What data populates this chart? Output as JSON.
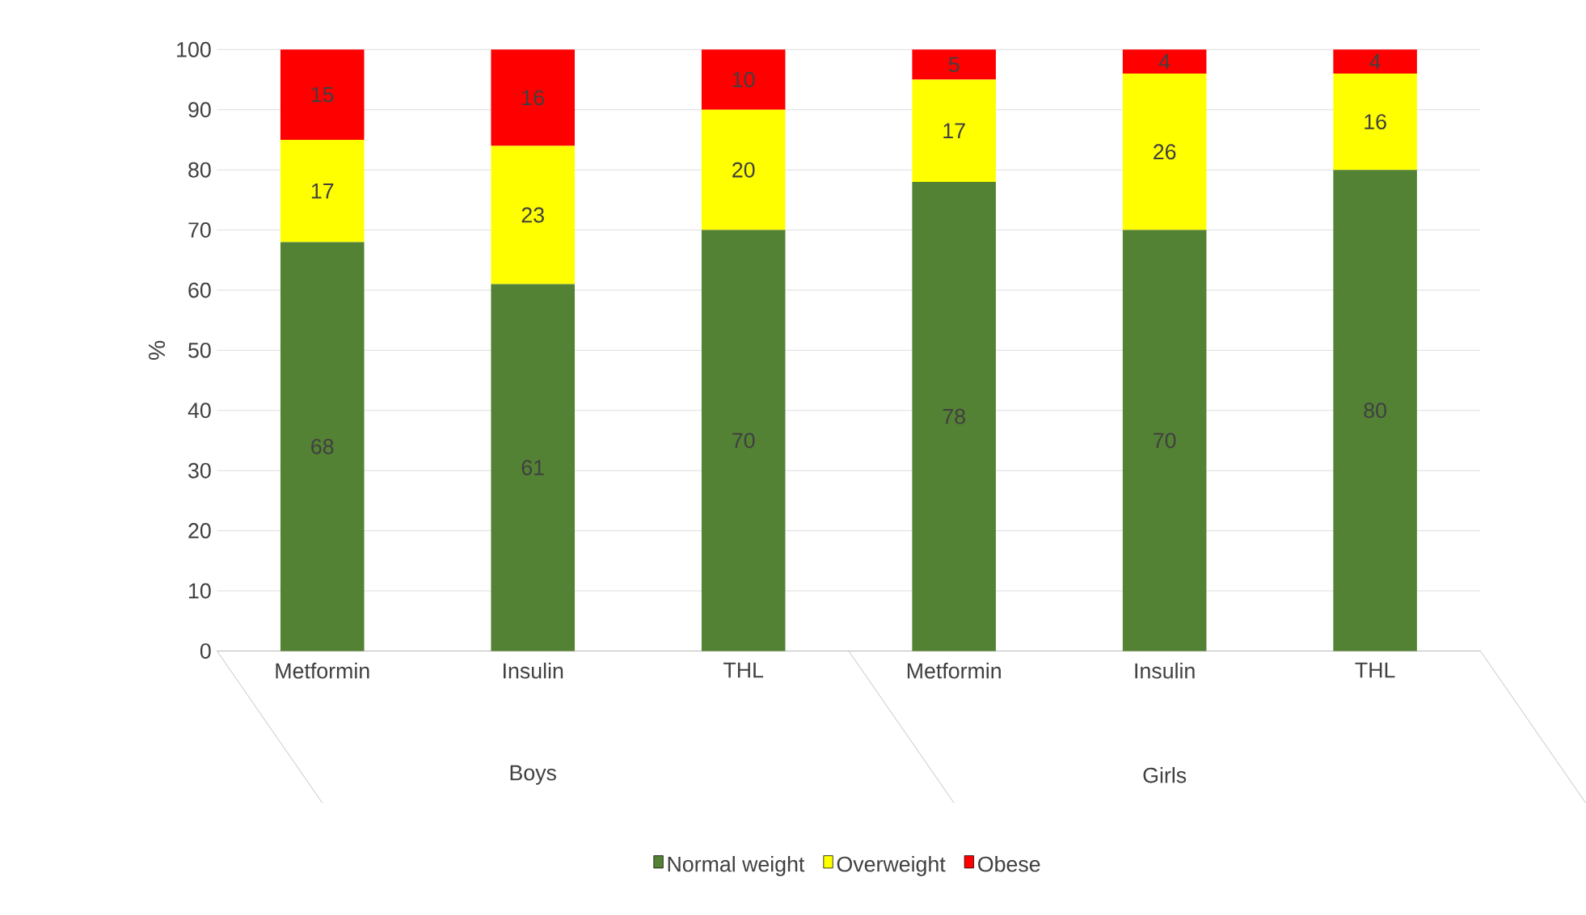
{
  "chart_data": {
    "type": "bar",
    "stacked": true,
    "ylabel": "%",
    "categories": [
      "Metformin",
      "Insulin",
      "THL",
      "Metformin",
      "Insulin",
      "THL"
    ],
    "annotations": [
      "Boys",
      "Girls"
    ],
    "series": [
      {
        "name": "Normal weight",
        "color": "#548235",
        "values": [
          68,
          61,
          70,
          78,
          70,
          80
        ]
      },
      {
        "name": "Overweight",
        "color": "#ffff00",
        "values": [
          17,
          23,
          20,
          17,
          26,
          16
        ]
      },
      {
        "name": "Obese",
        "color": "#ff0000",
        "values": [
          15,
          16,
          10,
          5,
          4,
          4
        ]
      }
    ],
    "ylim": [
      0,
      100
    ],
    "yticks": [
      0,
      10,
      20,
      30,
      40,
      50,
      60,
      70,
      80,
      90,
      100
    ],
    "grid": "y",
    "legend": "bottom",
    "data_labels": true
  }
}
